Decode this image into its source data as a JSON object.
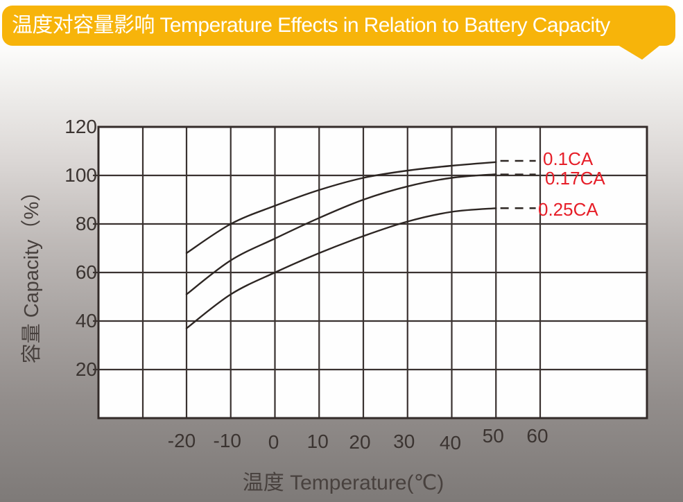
{
  "banner": {
    "title": "温度对容量影响 Temperature Effects in Relation to Battery Capacity",
    "background_color": "#F7B40A",
    "text_color": "#FFFFFF"
  },
  "chart_data": {
    "type": "line",
    "title": "温度对容量影响 Temperature Effects in Relation to Battery Capacity",
    "xlabel": "温度 Temperature(℃)",
    "ylabel": "容量 Capacity（%）",
    "x_ticks": [
      -20,
      -10,
      0,
      10,
      20,
      30,
      40,
      50,
      60
    ],
    "y_ticks": [
      120,
      100,
      80,
      60,
      40,
      20
    ],
    "xlim": [
      -40,
      84
    ],
    "ylim": [
      0,
      120
    ],
    "grid": true,
    "legend_position": "right-inline",
    "grid_color": "#3A3230",
    "line_color": "#2D2623",
    "tick_color": "#3B3431",
    "series_label_color": "#E61E28",
    "series": [
      {
        "name": "0.1CA",
        "x": [
          -20,
          -10,
          0,
          10,
          20,
          30,
          40,
          50
        ],
        "y": [
          68,
          80,
          87.5,
          94,
          99,
          102,
          104,
          105.5
        ],
        "dashed_end_y": 106,
        "dashed_end_x_range": [
          51,
          59
        ]
      },
      {
        "name": "0.17CA",
        "x": [
          -20,
          -10,
          0,
          10,
          20,
          30,
          40,
          50
        ],
        "y": [
          51,
          65,
          74,
          82.5,
          90,
          95.5,
          99,
          100.5
        ],
        "dashed_end_y": 100.4,
        "dashed_end_x_range": [
          51,
          59
        ]
      },
      {
        "name": "0.25CA",
        "x": [
          -20,
          -10,
          0,
          10,
          20,
          30,
          40,
          50
        ],
        "y": [
          37,
          51,
          60,
          68,
          75,
          81,
          85,
          86.5
        ],
        "dashed_end_y": 86.5,
        "dashed_end_x_range": [
          51,
          59
        ]
      }
    ]
  }
}
